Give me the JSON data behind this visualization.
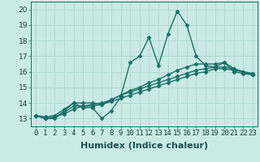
{
  "xlabel": "Humidex (Indice chaleur)",
  "bg_color": "#caeae6",
  "grid_color": "#b0d8d4",
  "line_color": "#1a7068",
  "xlim": [
    -0.5,
    23.5
  ],
  "ylim": [
    12.5,
    20.5
  ],
  "xticks": [
    0,
    1,
    2,
    3,
    4,
    5,
    6,
    7,
    8,
    9,
    10,
    11,
    12,
    13,
    14,
    15,
    16,
    17,
    18,
    19,
    20,
    21,
    22,
    23
  ],
  "yticks": [
    13,
    14,
    15,
    16,
    17,
    18,
    19,
    20
  ],
  "series": [
    [
      13.2,
      13.0,
      13.0,
      13.5,
      14.0,
      13.7,
      13.7,
      13.0,
      13.5,
      14.4,
      16.6,
      17.0,
      18.2,
      16.4,
      18.4,
      19.9,
      19.0,
      17.0,
      16.4,
      16.3,
      16.6,
      16.0,
      15.9,
      15.8
    ],
    [
      13.2,
      13.1,
      13.2,
      13.6,
      14.0,
      14.0,
      14.0,
      13.9,
      14.2,
      14.5,
      14.8,
      15.0,
      15.3,
      15.5,
      15.8,
      16.1,
      16.3,
      16.5,
      16.5,
      16.5,
      16.6,
      16.2,
      16.0,
      15.9
    ],
    [
      13.2,
      13.0,
      13.1,
      13.4,
      13.8,
      13.8,
      13.9,
      14.0,
      14.2,
      14.5,
      14.7,
      14.9,
      15.1,
      15.3,
      15.5,
      15.7,
      15.9,
      16.1,
      16.2,
      16.3,
      16.3,
      16.2,
      16.0,
      15.8
    ],
    [
      13.2,
      13.0,
      13.1,
      13.3,
      13.6,
      13.8,
      13.8,
      13.9,
      14.1,
      14.3,
      14.5,
      14.7,
      14.9,
      15.1,
      15.3,
      15.5,
      15.7,
      15.9,
      16.0,
      16.2,
      16.2,
      16.1,
      16.0,
      15.8
    ]
  ],
  "marker": "D",
  "marker_size": 2.5,
  "line_width": 1.0,
  "xlabel_fontsize": 8,
  "tick_fontsize": 6.5
}
